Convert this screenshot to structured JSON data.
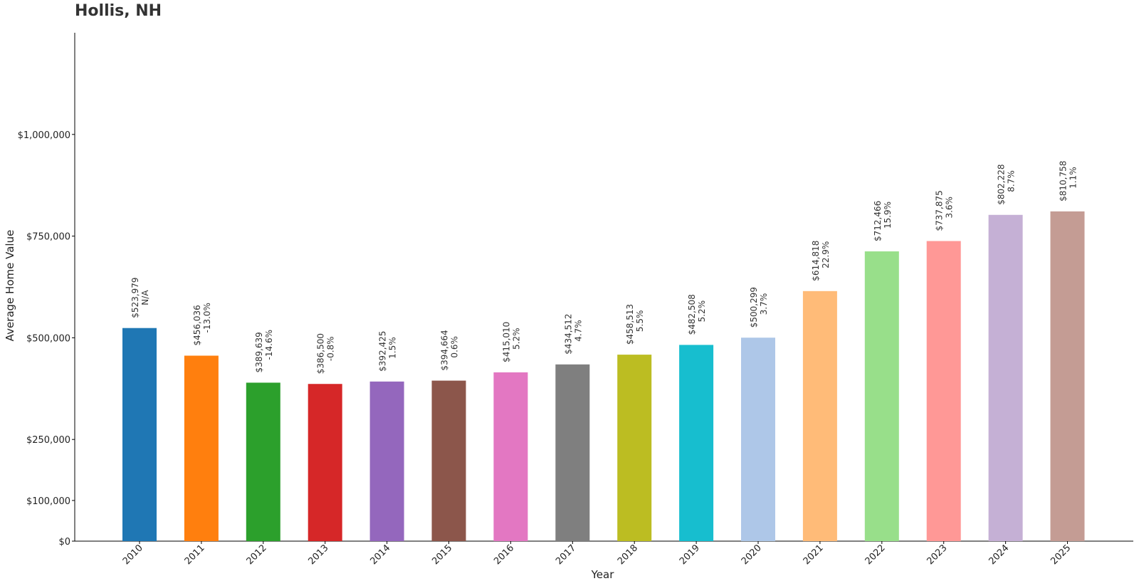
{
  "chart_data": {
    "type": "bar",
    "title": "Hollis, NH",
    "xlabel": "Year",
    "ylabel": "Average Home Value",
    "ylim": [
      0,
      1250000
    ],
    "yticks": [
      0,
      100000,
      250000,
      500000,
      750000,
      1000000
    ],
    "ytick_labels": [
      "$0",
      "$100,000",
      "$250,000",
      "$500,000",
      "$750,000",
      "$1,000,000"
    ],
    "grid": false,
    "categories": [
      "2010",
      "2011",
      "2012",
      "2013",
      "2014",
      "2015",
      "2016",
      "2017",
      "2018",
      "2019",
      "2020",
      "2021",
      "2022",
      "2023",
      "2024",
      "2025"
    ],
    "values": [
      523979,
      456036,
      389639,
      386500,
      392425,
      394664,
      415010,
      434512,
      458513,
      482508,
      500299,
      614818,
      712466,
      737875,
      802228,
      810758
    ],
    "value_labels": [
      "$523,979",
      "$456,036",
      "$389,639",
      "$386,500",
      "$392,425",
      "$394,664",
      "$415,010",
      "$434,512",
      "$458,513",
      "$482,508",
      "$500,299",
      "$614,818",
      "$712,466",
      "$737,875",
      "$802,228",
      "$810,758"
    ],
    "change_labels": [
      "N/A",
      "-13.0%",
      "-14.6%",
      "-0.8%",
      "1.5%",
      "0.6%",
      "5.2%",
      "4.7%",
      "5.5%",
      "5.2%",
      "3.7%",
      "22.9%",
      "15.9%",
      "3.6%",
      "8.7%",
      "1.1%"
    ],
    "colors": [
      "#1f77b4",
      "#ff7f0e",
      "#2ca02c",
      "#d62728",
      "#9467bd",
      "#8c564b",
      "#e377c2",
      "#7f7f7f",
      "#bcbd22",
      "#17becf",
      "#aec7e8",
      "#ffbb78",
      "#98df8a",
      "#ff9896",
      "#c5b0d5",
      "#c49c94"
    ]
  }
}
